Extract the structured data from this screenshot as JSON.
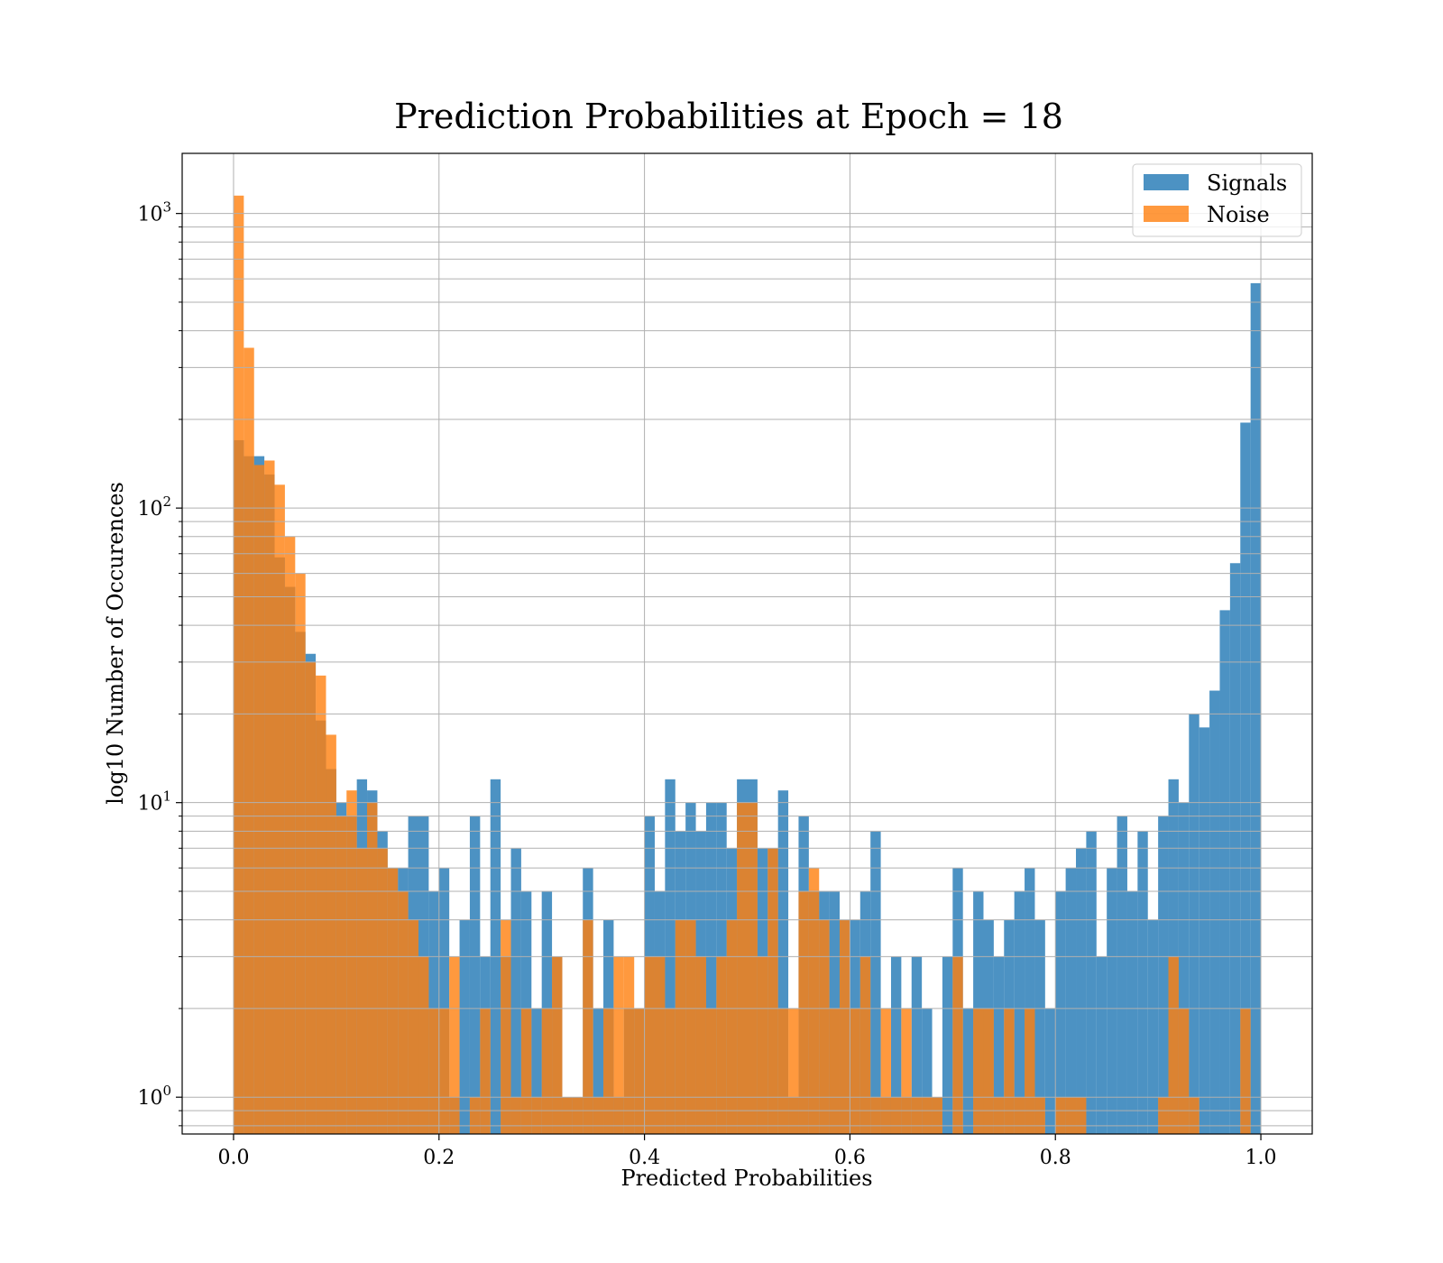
{
  "chart_data": {
    "type": "bar",
    "title": "Prediction Probabilities at Epoch = 18",
    "xlabel": "Predicted Probabilities",
    "ylabel": "log10 Number of Occurences",
    "xlim": [
      -0.05,
      1.05
    ],
    "ylim": [
      0.75,
      1600
    ],
    "yscale": "log",
    "grid": true,
    "legend_position": "top-right",
    "x_ticks": [
      {
        "value": 0.0,
        "label": "0.0"
      },
      {
        "value": 0.2,
        "label": "0.2"
      },
      {
        "value": 0.4,
        "label": "0.4"
      },
      {
        "value": 0.6,
        "label": "0.6"
      },
      {
        "value": 0.8,
        "label": "0.8"
      },
      {
        "value": 1.0,
        "label": "1.0"
      }
    ],
    "y_ticks": [
      {
        "value": 1,
        "base": "10",
        "exp": "0"
      },
      {
        "value": 10,
        "base": "10",
        "exp": "1"
      },
      {
        "value": 100,
        "base": "10",
        "exp": "2"
      },
      {
        "value": 1000,
        "base": "10",
        "exp": "3"
      }
    ],
    "bin_start": 0.0,
    "bin_width": 0.01,
    "series": [
      {
        "name": "Signals",
        "color": "#1f77b4",
        "values": [
          170,
          150,
          150,
          130,
          68,
          54,
          38,
          32,
          19,
          13,
          10,
          9,
          12,
          11,
          8,
          6,
          6,
          9,
          9,
          5,
          6,
          1,
          4,
          9,
          3,
          12,
          3,
          7,
          5,
          2,
          5,
          3,
          1,
          1,
          6,
          2,
          4,
          1,
          2,
          2,
          9,
          5,
          12,
          8,
          10,
          8,
          10,
          10,
          7,
          12,
          12,
          7,
          7,
          11,
          1,
          9,
          5,
          5,
          5,
          4,
          4,
          5,
          8,
          1,
          3,
          1,
          3,
          2,
          1,
          3,
          6,
          2,
          5,
          4,
          3,
          4,
          5,
          6,
          4,
          2,
          5,
          6,
          7,
          8,
          3,
          6,
          9,
          5,
          8,
          4,
          9,
          12,
          10,
          20,
          18,
          24,
          45,
          65,
          195,
          580
        ]
      },
      {
        "name": "Noise",
        "color": "#ff7f0e",
        "values": [
          1150,
          350,
          140,
          145,
          120,
          80,
          60,
          30,
          27,
          17,
          9,
          11,
          7,
          10,
          7,
          6,
          5,
          4,
          3,
          2,
          2,
          3,
          0,
          1,
          2,
          0,
          4,
          1,
          2,
          1,
          2,
          3,
          1,
          1,
          4,
          1,
          2,
          3,
          3,
          2,
          3,
          3,
          2,
          4,
          4,
          3,
          2,
          3,
          4,
          10,
          10,
          3,
          7,
          2,
          2,
          5,
          6,
          4,
          2,
          4,
          2,
          3,
          1,
          2,
          1,
          2,
          1,
          1,
          1,
          0,
          3,
          0,
          2,
          2,
          1,
          2,
          1,
          2,
          1,
          0,
          1,
          1,
          1,
          0,
          0,
          0,
          0,
          0,
          0,
          0,
          1,
          3,
          2,
          1,
          0,
          0,
          0,
          0,
          2,
          0
        ]
      }
    ]
  }
}
